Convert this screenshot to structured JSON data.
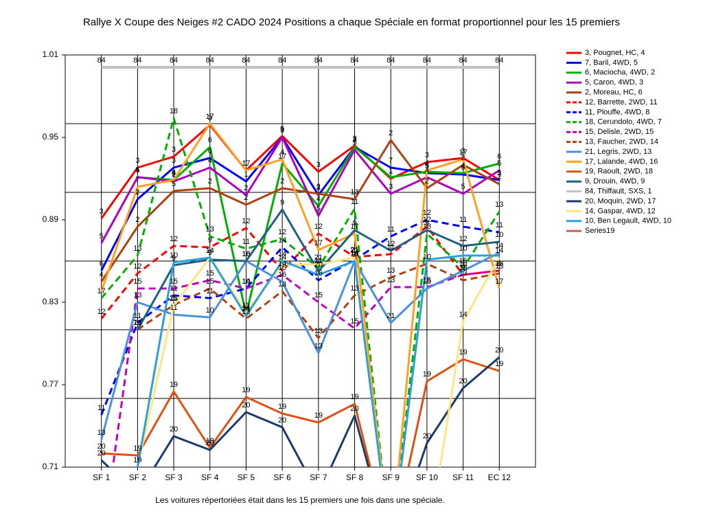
{
  "chart_data": {
    "type": "line",
    "title": "Rallye X Coupe des Neiges #2 CADO 2024  Positions a chaque Spéciale en format proportionnel pour les 15 premiers",
    "footnote": "Les voitures répertoriées était dans les 15 premiers une fois dans une spéciale.",
    "categories": [
      "SF 1",
      "SF 2",
      "SF 3",
      "SF 4",
      "SF 5",
      "SF 6",
      "SF 7",
      "SF 8",
      "SF 9",
      "SF 10",
      "SF 11",
      "EC 12"
    ],
    "ylim": [
      0.71,
      1.01
    ],
    "yticks": [
      0.71,
      0.77,
      0.83,
      0.89,
      0.95,
      1.01
    ],
    "ygrid": [
      0.76,
      0.81,
      0.86,
      0.91,
      0.96
    ],
    "series": [
      {
        "name": "3, Pougnet, HC, 4",
        "color": "#ff0000",
        "dash": false,
        "values": [
          0.891,
          0.928,
          0.936,
          0.959,
          0.926,
          0.951,
          0.925,
          0.944,
          0.92,
          0.932,
          0.935,
          0.919
        ],
        "labels": [
          3,
          3,
          3,
          3,
          1,
          5,
          3,
          3,
          1,
          3,
          3,
          3
        ]
      },
      {
        "name": "7, Baril, 4WD, 5",
        "color": "#0000ff",
        "dash": false,
        "values": [
          0.853,
          0.905,
          0.928,
          0.935,
          0.918,
          0.95,
          0.908,
          0.943,
          0.928,
          0.924,
          0.923,
          0.919
        ],
        "labels": [
          6,
          2,
          3,
          6,
          1,
          5,
          3,
          3,
          7,
          5,
          6,
          5
        ]
      },
      {
        "name": "6, Maciocha, 4WD, 2",
        "color": "#00b000",
        "dash": false,
        "values": [
          null,
          0.921,
          0.919,
          0.943,
          0.821,
          0.931,
          0.9,
          0.943,
          0.921,
          0.925,
          0.924,
          0.931
        ],
        "labels": [
          null,
          4,
          4,
          6,
          14,
          17,
          4,
          3,
          1,
          4,
          4,
          6
        ]
      },
      {
        "name": "5, Caron, 4WD, 3",
        "color": "#b000c0",
        "dash": false,
        "values": [
          0.873,
          0.921,
          0.918,
          0.928,
          0.908,
          0.95,
          0.893,
          0.941,
          0.909,
          0.921,
          0.909,
          0.926
        ],
        "labels": [
          5,
          5,
          2,
          4,
          2,
          7,
          5,
          5,
          3,
          4,
          5,
          5
        ]
      },
      {
        "name": "2, Moreau, HC, 6",
        "color": "#b04010",
        "dash": false,
        "values": [
          0.845,
          0.885,
          0.911,
          0.913,
          0.901,
          0.913,
          0.909,
          0.905,
          0.948,
          0.913,
          0.93,
          0.916
        ],
        "labels": [
          4,
          2,
          5,
          2,
          2,
          2,
          2,
          13,
          2,
          2,
          2,
          2
        ]
      },
      {
        "name": "12, Barrette, 2WD, 11",
        "color": "#ff0000",
        "dash": true,
        "values": [
          0.818,
          0.851,
          0.871,
          0.87,
          0.884,
          0.853,
          0.88,
          0.863,
          0.865,
          0.885,
          0.85,
          0.853
        ],
        "labels": [
          12,
          12,
          12,
          9,
          12,
          14,
          12,
          21,
          11,
          12,
          9,
          8
        ]
      },
      {
        "name": "11, Plouffe, 4WD, 8",
        "color": "#0000ff",
        "dash": true,
        "values": [
          0.748,
          0.815,
          0.835,
          0.833,
          0.84,
          0.87,
          0.846,
          0.861,
          0.878,
          0.89,
          0.885,
          0.881
        ],
        "labels": [
          11,
          11,
          11,
          11,
          10,
          14,
          16,
          14,
          11,
          12,
          11,
          11
        ]
      },
      {
        "name": "18, Cerundolo, 4WD, 7",
        "color": "#00b000",
        "dash": true,
        "values": [
          0.833,
          0.864,
          0.964,
          0.878,
          0.869,
          0.876,
          0.855,
          0.898,
          0.65,
          0.88,
          0.855,
          0.896
        ],
        "labels": [
          17,
          13,
          18,
          13,
          11,
          12,
          11,
          11,
          null,
          18,
          15,
          13
        ]
      },
      {
        "name": "15, Delisle, 2WD, 15",
        "color": "#c000c0",
        "dash": true,
        "values": [
          0.65,
          0.84,
          0.84,
          0.846,
          0.84,
          0.85,
          0.83,
          0.811,
          0.841,
          0.841,
          0.85,
          0.853
        ],
        "labels": [
          null,
          15,
          15,
          15,
          14,
          15,
          15,
          15,
          13,
          15,
          13,
          13
        ]
      },
      {
        "name": "13, Faucher, 2WD, 14",
        "color": "#b04010",
        "dash": true,
        "values": [
          null,
          0.81,
          0.828,
          0.84,
          0.818,
          0.838,
          0.804,
          0.835,
          0.848,
          0.858,
          0.846,
          0.851
        ],
        "labels": [
          null,
          13,
          21,
          15,
          13,
          13,
          13,
          13,
          13,
          10,
          13,
          13
        ]
      },
      {
        "name": "21, Legris, 2WD, 13",
        "color": "#4a90e0",
        "dash": false,
        "values": [
          0.73,
          0.83,
          0.821,
          0.819,
          0.86,
          0.845,
          0.793,
          0.86,
          0.815,
          0.84,
          0.853,
          0.866
        ],
        "labels": [
          13,
          13,
          11,
          10,
          16,
          16,
          13,
          13,
          21,
          15,
          16,
          14
        ]
      },
      {
        "name": "17, Lalande, 4WD, 16",
        "color": "#ffa020",
        "dash": false,
        "values": [
          0.838,
          0.914,
          0.919,
          0.96,
          0.926,
          0.934,
          0.868,
          0.88,
          0.65,
          0.926,
          0.934,
          0.84
        ],
        "labels": [
          null,
          7,
          6,
          17,
          17,
          4,
          17,
          17,
          null,
          4,
          17,
          17
        ]
      },
      {
        "name": "19, Raoult, 2WD, 18",
        "color": "#e05010",
        "dash": false,
        "values": [
          0.72,
          0.7185,
          0.765,
          0.724,
          0.761,
          0.749,
          0.7425,
          0.756,
          0.65,
          0.7725,
          0.7885,
          0.78
        ],
        "labels": [
          20,
          19,
          19,
          19,
          19,
          19,
          19,
          19,
          null,
          19,
          19,
          19
        ]
      },
      {
        "name": "9, Drouin, 4WD, 9",
        "color": "#1f6080",
        "dash": false,
        "values": [
          null,
          0.81,
          0.857,
          0.861,
          0.86,
          0.8975,
          0.8525,
          0.8825,
          0.8675,
          0.8825,
          0.871,
          0.874
        ],
        "labels": [
          null,
          21,
          9,
          9,
          18,
          9,
          20,
          9,
          12,
          9,
          12,
          10
        ]
      },
      {
        "name": "84, Thiffault, SXS, 1",
        "color": "#c0c0c0",
        "dash": false,
        "values": [
          1.001,
          1.001,
          1.001,
          1.001,
          1.001,
          1.001,
          1.001,
          1.001,
          1.001,
          1.001,
          1.001,
          1.001
        ],
        "labels": [
          84,
          84,
          84,
          84,
          84,
          84,
          84,
          84,
          84,
          84,
          84,
          84
        ]
      },
      {
        "name": "20, Moquin, 2WD, 17",
        "color": "#1a3a6a",
        "dash": false,
        "values": [
          0.715,
          0.69,
          0.7325,
          0.7225,
          0.75,
          0.739,
          0.69,
          0.7475,
          0.65,
          0.7275,
          0.7675,
          0.79
        ],
        "labels": [
          20,
          null,
          20,
          20,
          20,
          20,
          null,
          20,
          null,
          20,
          20,
          20
        ]
      },
      {
        "name": "14, Gaspar, 4WD, 12",
        "color": "#ffe680",
        "dash": false,
        "values": [
          0.65,
          0.71,
          0.8275,
          0.8625,
          0.8225,
          0.8575,
          0.8575,
          0.8625,
          0.65,
          0.65,
          0.816,
          0.8625
        ],
        "labels": [
          null,
          19,
          15,
          14,
          11,
          14,
          21,
          21,
          null,
          null,
          14,
          14
        ]
      },
      {
        "name": "10, Ben Legault, 4WD, 10",
        "color": "#2aa0e0",
        "dash": false,
        "values": [
          0.65,
          0.71,
          0.859,
          0.8625,
          0.82,
          0.86,
          0.85,
          0.86,
          0.65,
          0.861,
          0.864,
          0.864
        ],
        "labels": [
          null,
          null,
          10,
          14,
          21,
          14,
          null,
          14,
          null,
          null,
          10,
          null
        ]
      },
      {
        "name": "Series19",
        "color": "#d06060",
        "dash": false,
        "values": [
          null,
          null,
          null,
          null,
          null,
          null,
          null,
          null,
          null,
          null,
          null,
          null
        ],
        "labels": [
          null,
          null,
          null,
          null,
          null,
          null,
          null,
          null,
          null,
          null,
          null,
          null
        ]
      }
    ]
  }
}
